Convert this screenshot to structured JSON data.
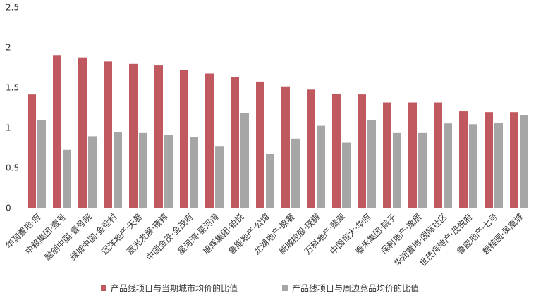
{
  "chart_data": {
    "type": "bar",
    "categories": [
      "华润置地·府",
      "中粮集团·壹号",
      "融创中国·壹号院",
      "绿城中国·金运村",
      "远洋地产·天著",
      "蓝光发展·雍锦",
      "中国金茂·金茂府",
      "星河湾·星河湾",
      "旭辉集团·铂悦",
      "鲁能地产·公馆",
      "龙湖地产·原著",
      "新城控股·璞樾",
      "万科地产·翡翠",
      "中国恒大·华府",
      "泰禾集团·院子",
      "保利地产·逸居",
      "华润置地·国际社区",
      "世茂房地产·茂悦府",
      "鲁能地产·七号",
      "碧桂园·凤凰城"
    ],
    "series": [
      {
        "name": "产品线项目与当期城市均价的比值",
        "color": "#c0595f",
        "values": [
          1.42,
          1.91,
          1.88,
          1.83,
          1.8,
          1.78,
          1.72,
          1.68,
          1.64,
          1.58,
          1.52,
          1.48,
          1.43,
          1.42,
          1.32,
          1.32,
          1.32,
          1.21,
          1.2,
          1.2
        ]
      },
      {
        "name": "产品线项目与周边竞品均价的比值",
        "color": "#a6a6a6",
        "values": [
          1.1,
          0.73,
          0.9,
          0.95,
          0.94,
          0.92,
          0.89,
          0.77,
          1.19,
          0.68,
          0.87,
          1.03,
          0.82,
          1.1,
          0.94,
          0.94,
          1.06,
          1.05,
          1.07,
          1.16
        ]
      }
    ],
    "ylim": [
      0,
      2.5
    ],
    "yticks": [
      0,
      0.5,
      1,
      1.5,
      2,
      2.5
    ],
    "grid": false,
    "legend": "bottom"
  }
}
